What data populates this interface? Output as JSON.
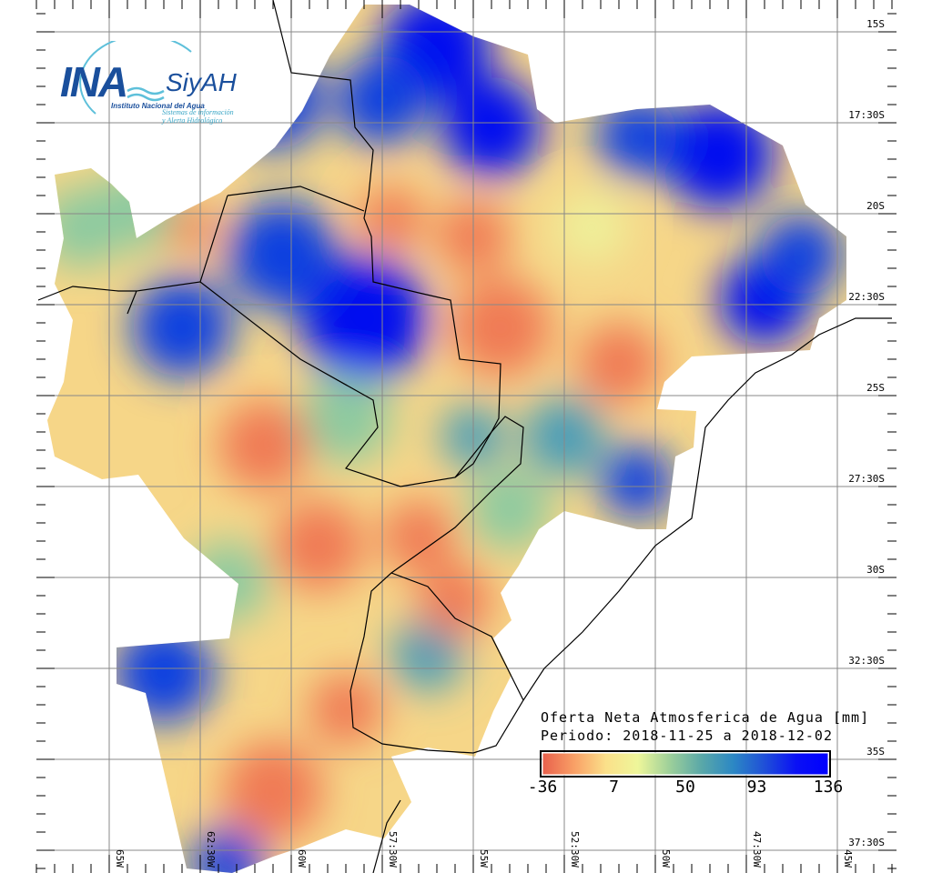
{
  "map": {
    "title": "Oferta Neta Atmosferica de Agua [mm]",
    "period": "Periodo: 2018-11-25 a 2018-12-02",
    "colorbar": {
      "ticks": [
        "-36",
        "7",
        "50",
        "93",
        "136"
      ],
      "min": -36,
      "max": 136,
      "colors": [
        "#e8604c",
        "#f9a066",
        "#fbe08a",
        "#eef69a",
        "#9ed09a",
        "#5aa8a8",
        "#2c88c4",
        "#1f4fd8",
        "#0a10f5",
        "#0000ff"
      ]
    },
    "latitudes": [
      "15S",
      "17:30S",
      "20S",
      "22:30S",
      "25S",
      "27:30S",
      "30S",
      "32:30S",
      "35S",
      "37:30S"
    ],
    "longitudes": [
      "65W",
      "62:30W",
      "60W",
      "57:30W",
      "55W",
      "52:30W",
      "50W",
      "47:30W",
      "45W"
    ]
  },
  "logo": {
    "ina": "INA",
    "siyah": "SiyAH",
    "line1": "Instituto Nacional del Agua",
    "line2": "Sistemas de información",
    "line3": "y Alerta Hidrológico"
  }
}
